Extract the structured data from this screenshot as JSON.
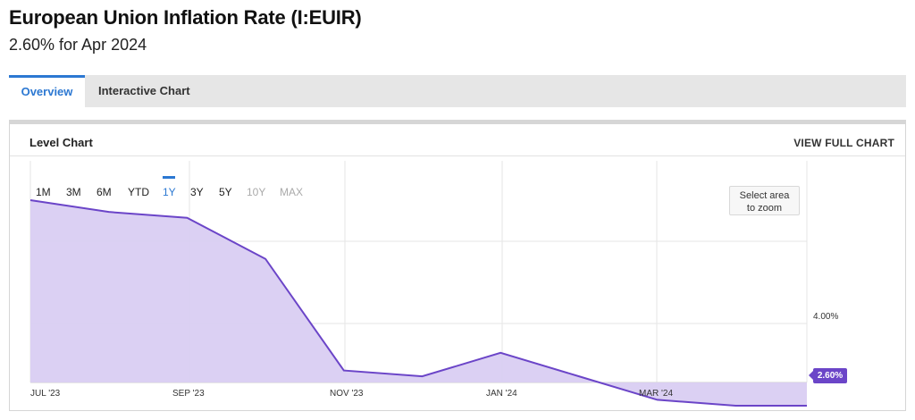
{
  "header": {
    "title": "European Union Inflation Rate (I:EUIR)",
    "subtitle": "2.60% for Apr 2024"
  },
  "tabs": [
    {
      "label": "Overview",
      "active": true
    },
    {
      "label": "Interactive Chart",
      "active": false
    }
  ],
  "panel": {
    "title": "Level Chart",
    "view_full_label": "VIEW FULL CHART"
  },
  "range_buttons": [
    {
      "label": "1M",
      "state": "normal"
    },
    {
      "label": "3M",
      "state": "normal"
    },
    {
      "label": "6M",
      "state": "normal"
    },
    {
      "label": "YTD",
      "state": "normal"
    },
    {
      "label": "1Y",
      "state": "active"
    },
    {
      "label": "3Y",
      "state": "normal"
    },
    {
      "label": "5Y",
      "state": "normal"
    },
    {
      "label": "10Y",
      "state": "disabled"
    },
    {
      "label": "MAX",
      "state": "disabled"
    }
  ],
  "zoom_hint": {
    "line1": "Select area",
    "line2": "to zoom"
  },
  "colors": {
    "accent": "#2c78d2",
    "series": "#6b45c8",
    "fill": "#d9cef2"
  },
  "chart_data": {
    "type": "area",
    "x": [
      "2023-07",
      "2023-08",
      "2023-09",
      "2023-10",
      "2023-11",
      "2023-12",
      "2024-01",
      "2024-02",
      "2024-03",
      "2024-04"
    ],
    "values": [
      6.1,
      5.9,
      5.8,
      5.1,
      3.2,
      3.1,
      3.5,
      3.1,
      2.7,
      2.6
    ],
    "x_tick_labels": [
      "JUL '23",
      "SEP '23",
      "NOV '23",
      "JAN '24",
      "MAR '24"
    ],
    "y_tick_labels": [
      "4.00%"
    ],
    "last_value_label": "2.60%",
    "grid": true
  }
}
